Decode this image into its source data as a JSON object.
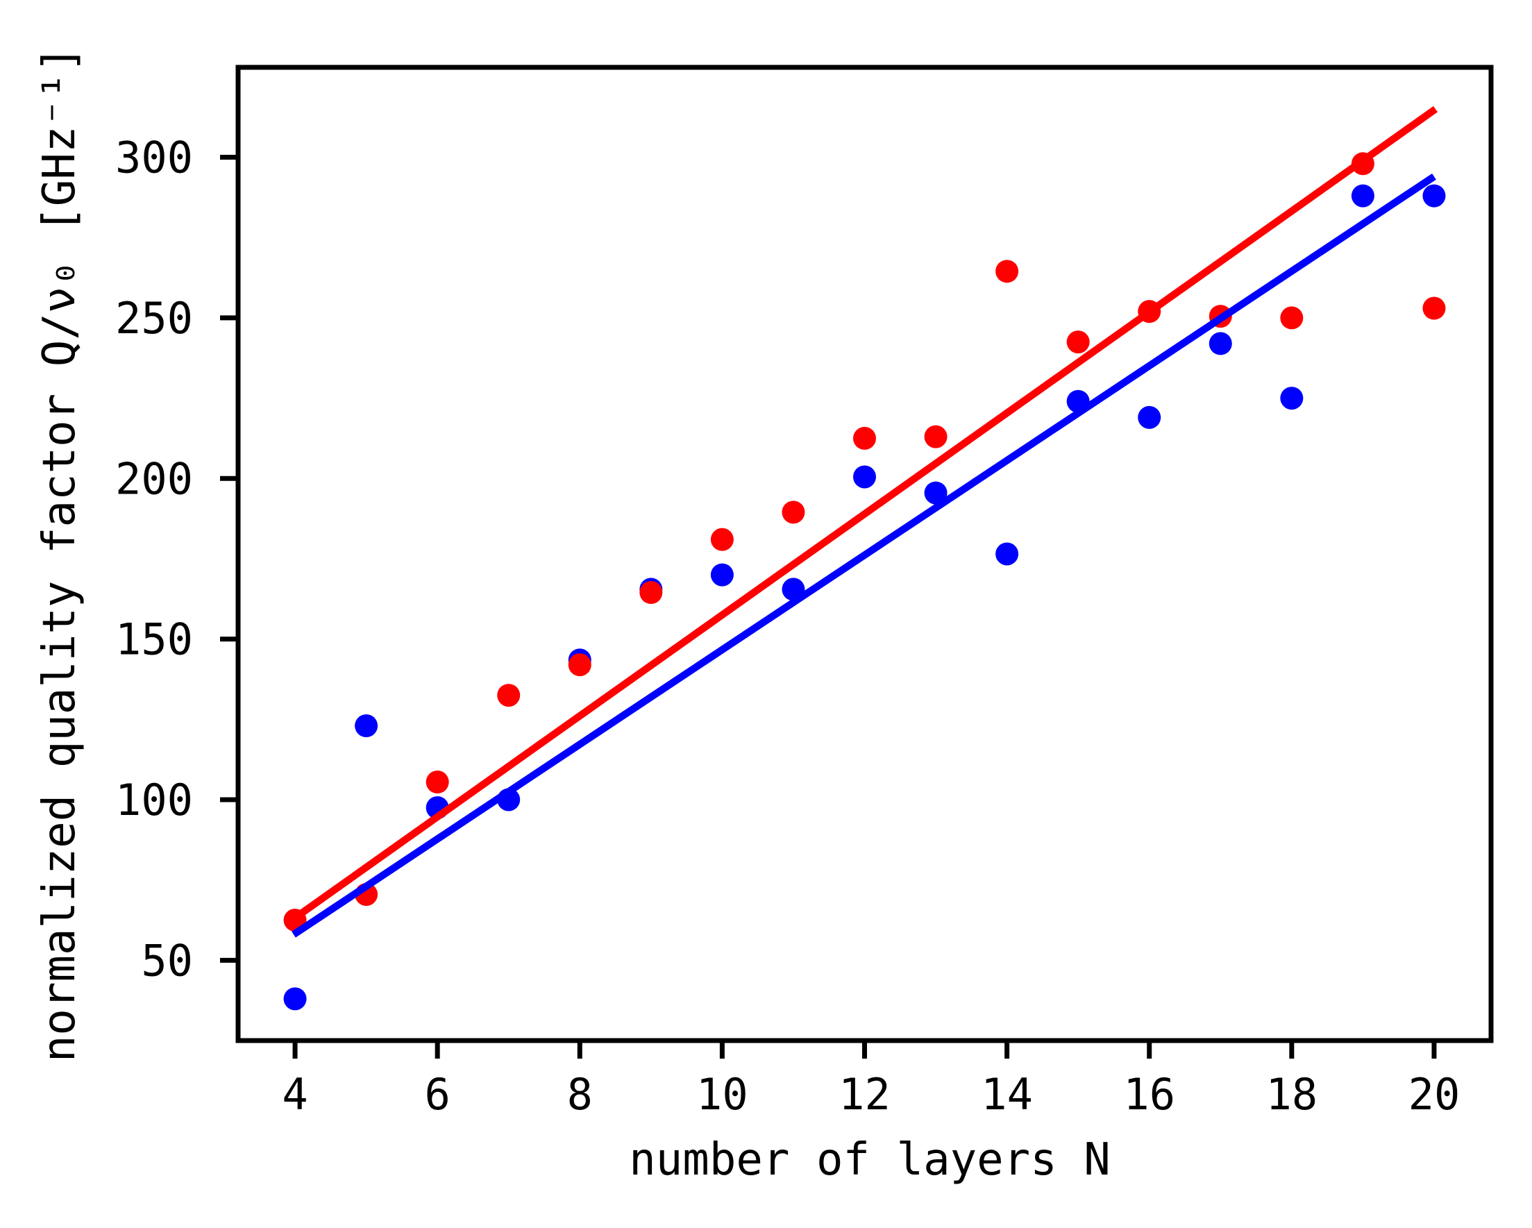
{
  "figure": {
    "background": "#ffffff",
    "frame_color": "#000000"
  },
  "chart_data": {
    "type": "scatter",
    "title": "",
    "xlabel": "number of layers N",
    "ylabel": "normalized quality factor Q/ν₀ [GHz⁻¹]",
    "xlim": [
      3.2,
      20.8
    ],
    "ylim": [
      25,
      328
    ],
    "x_ticks": [
      4,
      6,
      8,
      10,
      12,
      14,
      16,
      18,
      20
    ],
    "y_ticks": [
      50,
      100,
      150,
      200,
      250,
      300
    ],
    "grid": false,
    "legend": null,
    "series": [
      {
        "name": "blue-data-points",
        "type": "scatter",
        "color": "#0000ff",
        "marker": "circle",
        "x": [
          4,
          5,
          6,
          7,
          8,
          9,
          10,
          11,
          12,
          13,
          14,
          15,
          16,
          17,
          18,
          19,
          20
        ],
        "y": [
          38,
          123,
          97.5,
          100,
          143.5,
          165.5,
          170,
          165.5,
          200.5,
          195.5,
          176.5,
          224,
          219,
          242,
          225,
          288,
          288
        ]
      },
      {
        "name": "red-data-points",
        "type": "scatter",
        "color": "#ff0000",
        "marker": "circle",
        "x": [
          4,
          5,
          6,
          7,
          8,
          9,
          10,
          11,
          12,
          13,
          14,
          15,
          16,
          17,
          18,
          19,
          20
        ],
        "y": [
          62.5,
          70.5,
          105.5,
          132.5,
          142,
          164.5,
          181,
          189.5,
          212.5,
          213,
          264.5,
          242.5,
          252,
          250.5,
          250,
          298,
          253
        ]
      },
      {
        "name": "red-fit-line",
        "type": "line",
        "color": "#ff0000",
        "x": [
          4.05,
          20.02
        ],
        "y": [
          64,
          315
        ]
      },
      {
        "name": "blue-fit-line",
        "type": "line",
        "color": "#0000ff",
        "x": [
          3.98,
          20.0
        ],
        "y": [
          58,
          294
        ]
      }
    ]
  }
}
